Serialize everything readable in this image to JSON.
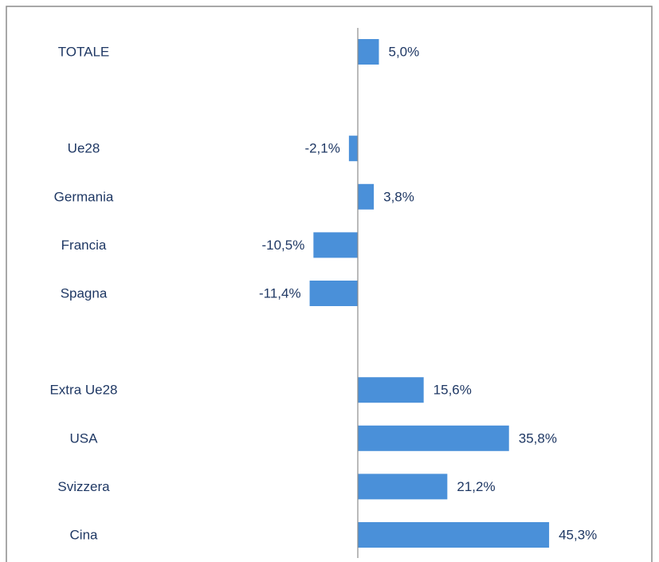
{
  "chart_data": {
    "type": "hbar",
    "categories": [
      "TOTALE",
      null,
      "Ue28",
      "Germania",
      "Francia",
      "Spagna",
      null,
      "Extra Ue28",
      "USA",
      "Svizzera",
      "Cina"
    ],
    "values": [
      5.0,
      null,
      -2.1,
      3.8,
      -10.5,
      -11.4,
      null,
      15.6,
      35.8,
      21.2,
      45.3
    ],
    "value_labels": [
      "5,0%",
      null,
      "-2,1%",
      "3,8%",
      "-10,5%",
      "-11,4%",
      null,
      "15,6%",
      "35,8%",
      "21,2%",
      "45,3%"
    ],
    "color": "#4a90d9",
    "xlim": [
      -20,
      50
    ]
  }
}
